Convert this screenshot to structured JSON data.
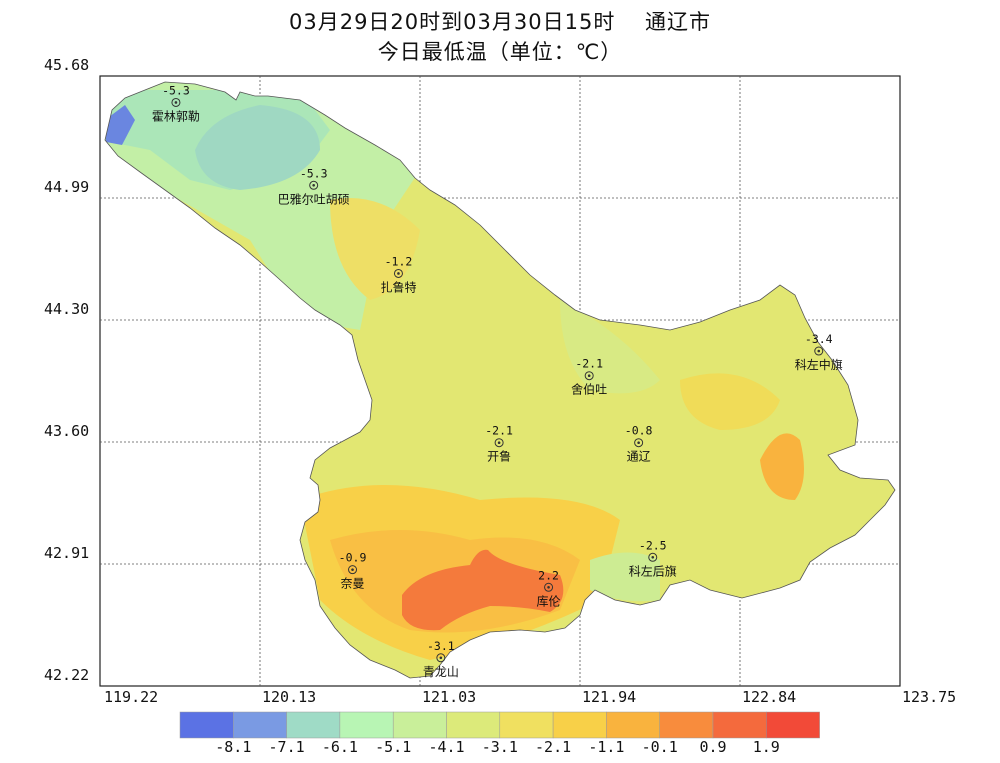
{
  "title": {
    "line1": "03月29日20时到03月30日15时　 通辽市",
    "line2": "今日最低温（单位：℃）"
  },
  "axes": {
    "y_ticks": [
      "45.68",
      "44.99",
      "44.30",
      "43.60",
      "42.91",
      "42.22"
    ],
    "x_ticks": [
      "119.22",
      "120.13",
      "121.03",
      "121.94",
      "122.84",
      "123.75"
    ]
  },
  "stations": [
    {
      "name": "霍林郭勒",
      "value": "-5.3",
      "lon": 119.65,
      "lat": 45.53
    },
    {
      "name": "巴雅尔吐胡硕",
      "value": "-5.3",
      "lon": 120.43,
      "lat": 45.06
    },
    {
      "name": "扎鲁特",
      "value": "-1.2",
      "lon": 120.91,
      "lat": 44.56
    },
    {
      "name": "舍伯吐",
      "value": "-2.1",
      "lon": 121.99,
      "lat": 43.98
    },
    {
      "name": "科左中旗",
      "value": "-3.4",
      "lon": 123.29,
      "lat": 44.12
    },
    {
      "name": "开鲁",
      "value": "-2.1",
      "lon": 121.48,
      "lat": 43.6
    },
    {
      "name": "通辽",
      "value": "-0.8",
      "lon": 122.27,
      "lat": 43.6
    },
    {
      "name": "科左后旗",
      "value": "-2.5",
      "lon": 122.35,
      "lat": 42.95
    },
    {
      "name": "奈曼",
      "value": "-0.9",
      "lon": 120.65,
      "lat": 42.88
    },
    {
      "name": "库伦",
      "value": "2.2",
      "lon": 121.76,
      "lat": 42.78
    },
    {
      "name": "青龙山",
      "value": "-3.1",
      "lon": 121.15,
      "lat": 42.38
    }
  ],
  "legend": {
    "colors": [
      "#5b72e4",
      "#7a9ae3",
      "#9fdbc6",
      "#b8f5b4",
      "#c9ef9a",
      "#dcea7a",
      "#f0e060",
      "#f8d048",
      "#f9b33e",
      "#f88c3d",
      "#f46a3d",
      "#f24a38"
    ],
    "labels": [
      "-8.1",
      "-7.1",
      "-6.1",
      "-5.1",
      "-4.1",
      "-3.1",
      "-2.1",
      "-1.1",
      "-0.1",
      "0.9",
      "1.9"
    ]
  }
}
